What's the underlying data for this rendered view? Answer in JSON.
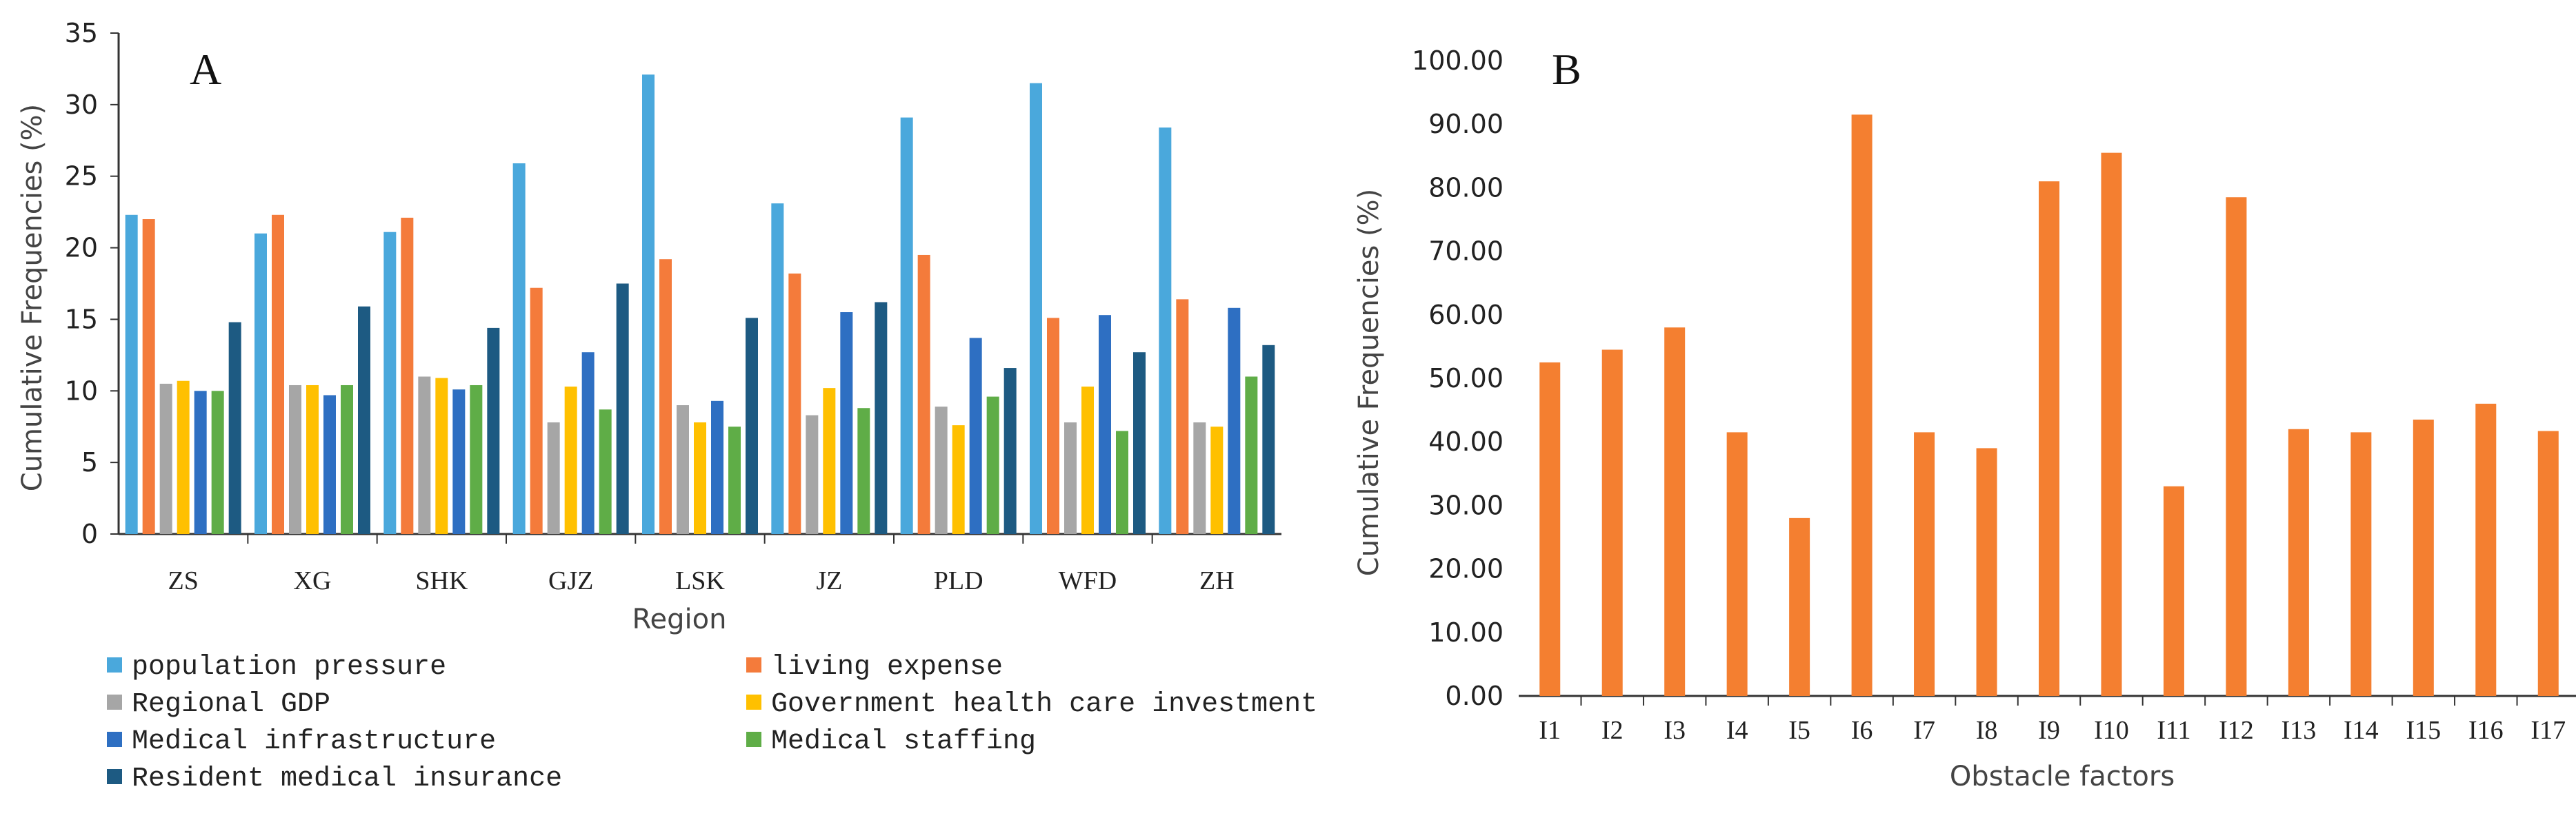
{
  "colors": {
    "population_pressure": "#4aa8dc",
    "living_expense": "#f47b3b",
    "regional_gdp": "#a6a6a6",
    "gov_health_investment": "#ffc000",
    "medical_infrastructure": "#2e6fc2",
    "medical_staffing": "#5fad47",
    "resident_medical_insurance": "#1d5a82",
    "panel_b_bar": "#f47f30"
  },
  "chart_data": [
    {
      "type": "bar",
      "panel_label": "A",
      "title": "",
      "xlabel": "Region",
      "ylabel": "Cumulative Frequencies (%)",
      "ylim": [
        0,
        35
      ],
      "yticks": [
        "0",
        "5",
        "10",
        "15",
        "20",
        "25",
        "30",
        "35"
      ],
      "categories": [
        "ZS",
        "XG",
        "SHK",
        "GJZ",
        "LSK",
        "JZ",
        "PLD",
        "WFD",
        "ZH"
      ],
      "legend_placement": "bottom",
      "series": [
        {
          "name": "population pressure",
          "color_key": "population_pressure",
          "values": [
            22.3,
            21.0,
            21.1,
            25.9,
            32.1,
            23.1,
            29.1,
            31.5,
            28.4
          ]
        },
        {
          "name": "living expense",
          "color_key": "living_expense",
          "values": [
            22.0,
            22.3,
            22.1,
            17.2,
            19.2,
            18.2,
            19.5,
            15.1,
            16.4
          ]
        },
        {
          "name": "Regional GDP",
          "color_key": "regional_gdp",
          "values": [
            10.5,
            10.4,
            11.0,
            7.8,
            9.0,
            8.3,
            8.9,
            7.8,
            7.8
          ]
        },
        {
          "name": "Government health care investment",
          "color_key": "gov_health_investment",
          "values": [
            10.7,
            10.4,
            10.9,
            10.3,
            7.8,
            10.2,
            7.6,
            10.3,
            7.5
          ]
        },
        {
          "name": "Medical infrastructure",
          "color_key": "medical_infrastructure",
          "values": [
            10.0,
            9.7,
            10.1,
            12.7,
            9.3,
            15.5,
            13.7,
            15.3,
            15.8
          ]
        },
        {
          "name": "Medical staffing",
          "color_key": "medical_staffing",
          "values": [
            10.0,
            10.4,
            10.4,
            8.7,
            7.5,
            8.8,
            9.6,
            7.2,
            11.0
          ]
        },
        {
          "name": "Resident medical insurance",
          "color_key": "resident_medical_insurance",
          "values": [
            14.8,
            15.9,
            14.4,
            17.5,
            15.1,
            16.2,
            11.6,
            12.7,
            13.2
          ]
        }
      ]
    },
    {
      "type": "bar",
      "panel_label": "B",
      "title": "",
      "xlabel": "Obstacle factors",
      "ylabel": "Cumulative Frequencies (%)",
      "ylim": [
        0,
        100
      ],
      "yticks": [
        "0.00",
        "10.00",
        "20.00",
        "30.00",
        "40.00",
        "50.00",
        "60.00",
        "70.00",
        "80.00",
        "90.00",
        "100.00"
      ],
      "categories": [
        "I1",
        "I2",
        "I3",
        "I4",
        "I5",
        "I6",
        "I7",
        "I8",
        "I9",
        "I10",
        "I11",
        "I12",
        "I13",
        "I14",
        "I15",
        "I16",
        "I17"
      ],
      "series": [
        {
          "name": "Cumulative Frequencies",
          "color_key": "panel_b_bar",
          "values": [
            52.5,
            54.5,
            58.0,
            41.5,
            28.0,
            91.5,
            41.5,
            39.0,
            81.0,
            85.5,
            33.0,
            78.5,
            42.0,
            41.5,
            43.5,
            46.0,
            41.7
          ]
        }
      ]
    }
  ]
}
